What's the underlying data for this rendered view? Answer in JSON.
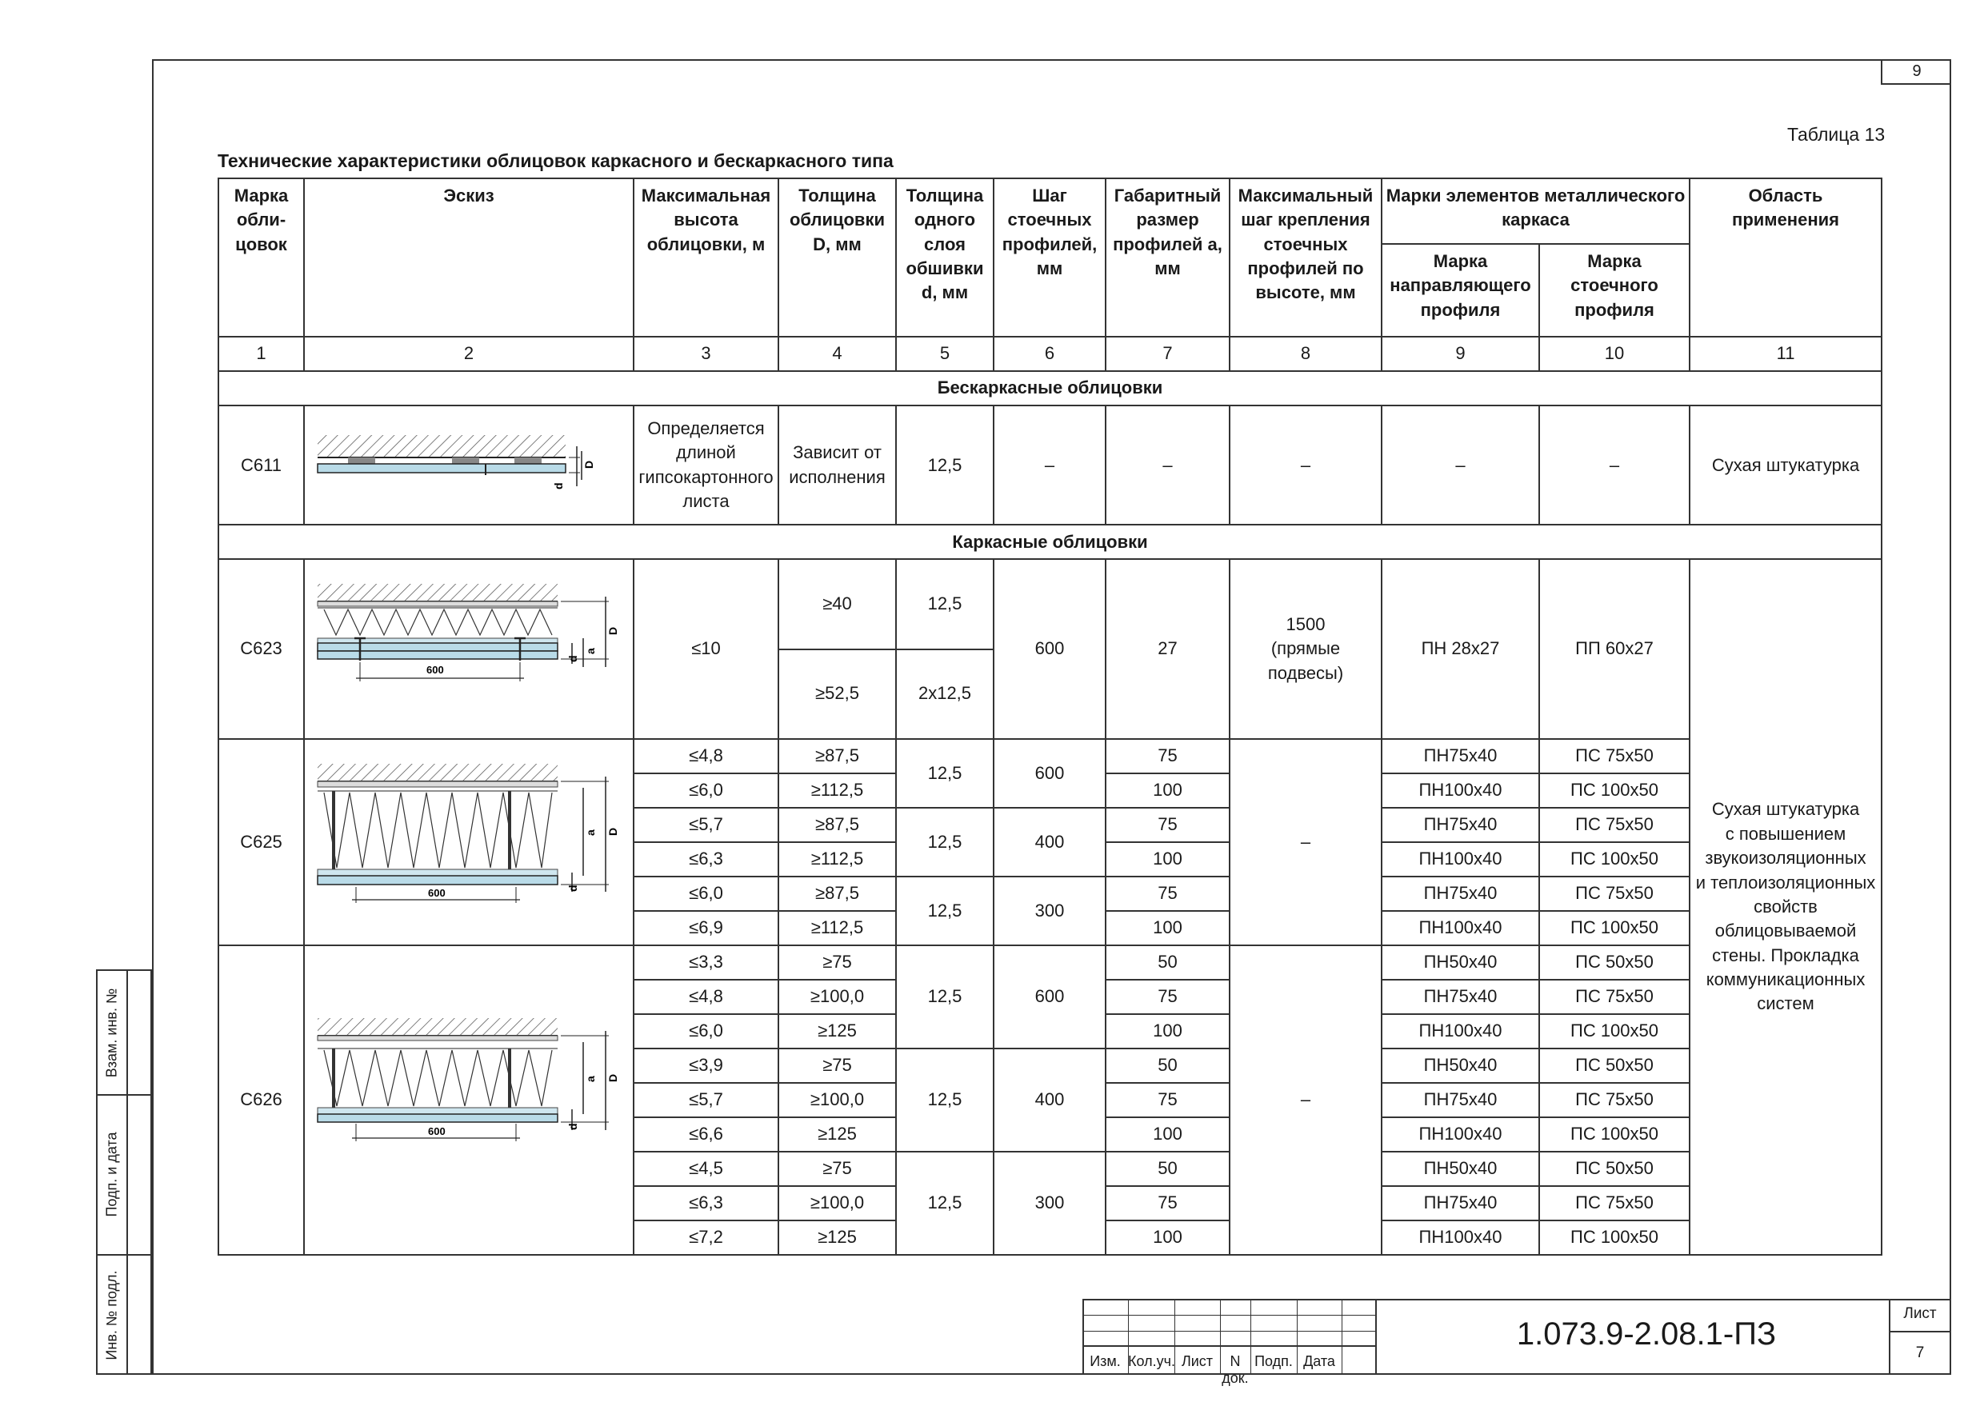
{
  "page_number": "9",
  "table_label": "Таблица 13",
  "doc_title": "Технические характеристики облицовок каркасного и бескаркасного типа",
  "headers": {
    "col1": "Марка обли-\nцовок",
    "col2": "Эскиз",
    "col3": "Максимальная высота облицовки, м",
    "col4": "Толщина облицовки D, мм",
    "col5": "Толщина одного слоя обшивки d, мм",
    "col6": "Шаг стоечных профилей, мм",
    "col7": "Габаритный размер профилей a, мм",
    "col8": "Максимальный шаг крепления стоечных профилей по высоте, мм",
    "col9_10": "Марки элементов металлического каркаса",
    "col9": "Марка направляющего профиля",
    "col10": "Марка стоечного профиля",
    "col11": "Область применения"
  },
  "col_numbers": [
    "1",
    "2",
    "3",
    "4",
    "5",
    "6",
    "7",
    "8",
    "9",
    "10",
    "11"
  ],
  "section1": "Бескаркасные облицовки",
  "section2": "Каркасные облицовки",
  "c611": {
    "mark": "С611",
    "height": "Определяется длиной гипсокартонного листа",
    "thickness": "Зависит от исполнения",
    "layer": "12,5",
    "step": "–",
    "size": "–",
    "fix": "–",
    "guide": "–",
    "stud": "–",
    "area": "Сухая штукатурка"
  },
  "c623": {
    "mark": "С623",
    "height": "≤10",
    "thickness_a": "≥40",
    "thickness_b": "≥52,5",
    "layer_a": "12,5",
    "layer_b": "2х12,5",
    "step": "600",
    "size": "27",
    "fix": "1500\n(прямые подвесы)",
    "guide": "ПН 28х27",
    "stud": "ПП 60х27"
  },
  "c625": {
    "mark": "С625",
    "fix": "–",
    "rows": [
      {
        "h": "≤4,8",
        "d": "≥87,5",
        "layer": "12,5",
        "step": "600",
        "a": "75",
        "guide": "ПН75х40",
        "stud": "ПС 75х50"
      },
      {
        "h": "≤6,0",
        "d": "≥112,5",
        "a": "100",
        "guide": "ПН100х40",
        "stud": "ПС 100х50"
      },
      {
        "h": "≤5,7",
        "d": "≥87,5",
        "layer": "12,5",
        "step": "400",
        "a": "75",
        "guide": "ПН75х40",
        "stud": "ПС 75х50"
      },
      {
        "h": "≤6,3",
        "d": "≥112,5",
        "a": "100",
        "guide": "ПН100х40",
        "stud": "ПС 100х50"
      },
      {
        "h": "≤6,0",
        "d": "≥87,5",
        "layer": "12,5",
        "step": "300",
        "a": "75",
        "guide": "ПН75х40",
        "stud": "ПС 75х50"
      },
      {
        "h": "≤6,9",
        "d": "≥112,5",
        "a": "100",
        "guide": "ПН100х40",
        "stud": "ПС 100х50"
      }
    ]
  },
  "c626": {
    "mark": "С626",
    "fix": "–",
    "rows": [
      {
        "h": "≤3,3",
        "d": "≥75",
        "layer": "12,5",
        "step": "600",
        "a": "50",
        "guide": "ПН50х40",
        "stud": "ПС 50х50"
      },
      {
        "h": "≤4,8",
        "d": "≥100,0",
        "a": "75",
        "guide": "ПН75х40",
        "stud": "ПС 75х50"
      },
      {
        "h": "≤6,0",
        "d": "≥125",
        "a": "100",
        "guide": "ПН100х40",
        "stud": "ПС 100х50"
      },
      {
        "h": "≤3,9",
        "d": "≥75",
        "layer": "12,5",
        "step": "400",
        "a": "50",
        "guide": "ПН50х40",
        "stud": "ПС 50х50"
      },
      {
        "h": "≤5,7",
        "d": "≥100,0",
        "a": "75",
        "guide": "ПН75х40",
        "stud": "ПС 75х50"
      },
      {
        "h": "≤6,6",
        "d": "≥125",
        "a": "100",
        "guide": "ПН100х40",
        "stud": "ПС 100х50"
      },
      {
        "h": "≤4,5",
        "d": "≥75",
        "layer": "12,5",
        "step": "300",
        "a": "50",
        "guide": "ПН50х40",
        "stud": "ПС 50х50"
      },
      {
        "h": "≤6,3",
        "d": "≥100,0",
        "a": "75",
        "guide": "ПН75х40",
        "stud": "ПС 75х50"
      },
      {
        "h": "≤7,2",
        "d": "≥125",
        "a": "100",
        "guide": "ПН100х40",
        "stud": "ПС 100х50"
      }
    ]
  },
  "area_framed": "Сухая штукатурка\nс повышением\nзвукоизоляционных\nи теплоизоляционных\nсвойств\nоблицовываемой\nстены. Прокладка\nкоммуникационных\nсистем",
  "sketch_labels": {
    "D": "D",
    "d": "d",
    "a": "a",
    "step": "600"
  },
  "side_stamp": [
    "Взам. инв. №",
    "Подп. и дата",
    "Инв. № подл."
  ],
  "title_block": {
    "headers": [
      "Изм.",
      "Кол.уч.",
      "Лист",
      "N док.",
      "Подп.",
      "Дата"
    ],
    "code": "1.073.9-2.08.1-ПЗ",
    "sheet_label": "Лист",
    "sheet_number": "7"
  }
}
